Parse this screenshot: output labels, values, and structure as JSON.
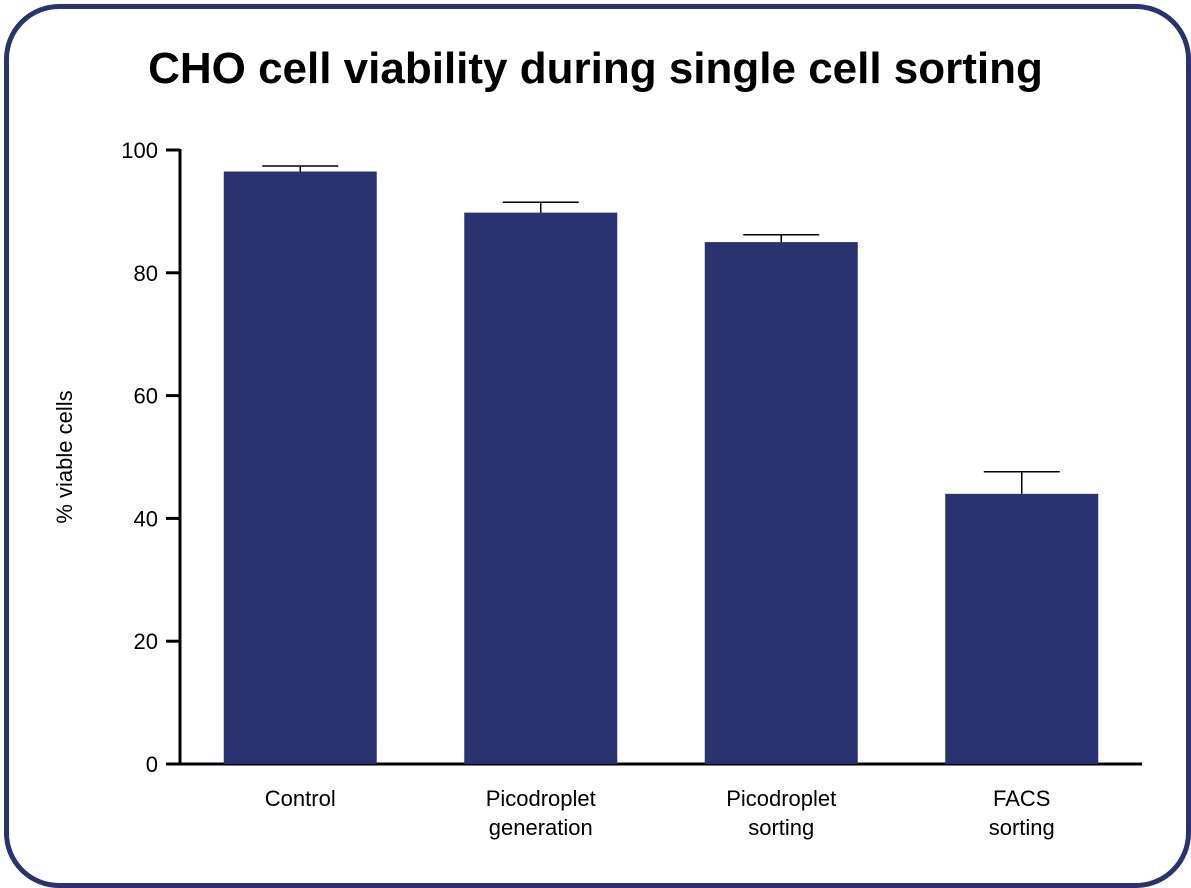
{
  "colors": {
    "frame": "#2a3270",
    "bar": "#2a3270",
    "axis": "#000000"
  },
  "chart_data": {
    "type": "bar",
    "title": "CHO cell viability during single cell sorting",
    "xlabel": "",
    "ylabel": "% viable cells",
    "ylim": [
      0,
      100
    ],
    "yticks": [
      "0",
      "20",
      "40",
      "60",
      "80",
      "100"
    ],
    "categories": [
      [
        "Control"
      ],
      [
        "Picodroplet",
        "generation"
      ],
      [
        "Picodroplet",
        "sorting"
      ],
      [
        "FACS",
        "sorting"
      ]
    ],
    "values": [
      96.5,
      89.8,
      85.0,
      44.0
    ],
    "error": [
      0.9,
      1.7,
      1.2,
      3.6
    ],
    "grid": false,
    "legend": "none"
  }
}
